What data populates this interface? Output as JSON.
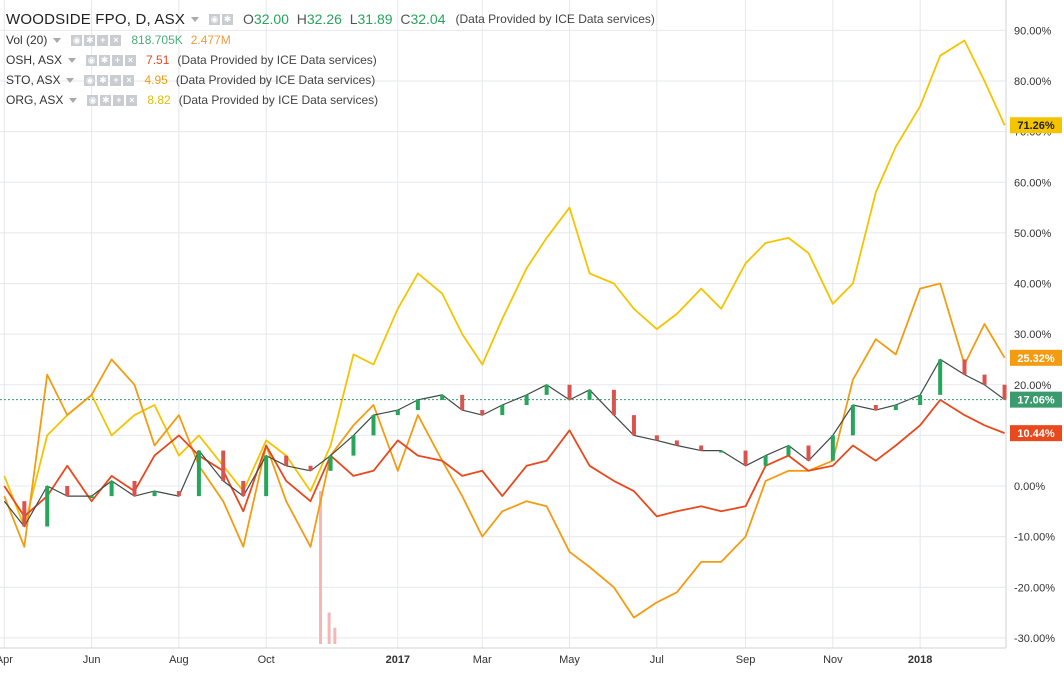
{
  "legend": {
    "main": {
      "symbol": "WOODSIDE FPO, D, ASX",
      "o_label": "O",
      "o": "32.00",
      "h_label": "H",
      "h": "32.26",
      "l_label": "L",
      "l": "31.89",
      "c_label": "C",
      "c": "32.04",
      "provider": "(Data Provided by ICE Data services)"
    },
    "vol": {
      "label": "Vol (20)",
      "v1": "818.705K",
      "v2": "2.477M"
    },
    "compare": [
      {
        "label": "OSH, ASX",
        "value": "7.51",
        "provider": "(Data Provided by ICE Data services)"
      },
      {
        "label": "STO, ASX",
        "value": "4.95",
        "provider": "(Data Provided by ICE Data services)"
      },
      {
        "label": "ORG, ASX",
        "value": "8.82",
        "provider": "(Data Provided by ICE Data services)"
      }
    ]
  },
  "colors": {
    "woodside_up": "#26a65b",
    "woodside_down": "#d9534f",
    "osh": "#e8491d",
    "sto": "#f39c12",
    "org": "#f5c400",
    "grid": "#e6e8ec",
    "axis_text": "#333333"
  },
  "chart_data": {
    "type": "line",
    "ylim": [
      -32,
      96
    ],
    "yticks": [
      -30,
      -20,
      -10,
      0,
      10,
      20,
      30,
      40,
      50,
      60,
      70,
      80,
      90
    ],
    "yticklabels": [
      "-30.00%",
      "-20.00%",
      "-10.00%",
      "0.00%",
      "10.00%",
      "20.00%",
      "30.00%",
      "40.00%",
      "50.00%",
      "60.00%",
      "70.00%",
      "80.00%",
      "90.00%"
    ],
    "xlim": [
      "2016-03-29",
      "2018-03-02"
    ],
    "xticks": [
      "2016-04-01",
      "2016-06-01",
      "2016-08-01",
      "2016-10-01",
      "2017-01-01",
      "2017-03-01",
      "2017-05-01",
      "2017-07-01",
      "2017-09-01",
      "2017-11-01",
      "2018-01-01"
    ],
    "xticklabels": [
      "Apr",
      "Jun",
      "Aug",
      "Oct",
      "2017",
      "Mar",
      "May",
      "Jul",
      "Sep",
      "Nov",
      "2018"
    ],
    "last_labels": [
      {
        "series": "org",
        "text": "71.26%",
        "value": 71.26
      },
      {
        "series": "sto",
        "text": "25.32%",
        "value": 25.32
      },
      {
        "series": "woodside",
        "text": "17.06%",
        "value": 17.06
      },
      {
        "series": "osh",
        "text": "10.44%",
        "value": 10.44
      }
    ],
    "series": [
      {
        "key": "org",
        "x": [
          "2016-04-01",
          "2016-04-15",
          "2016-05-01",
          "2016-05-15",
          "2016-06-01",
          "2016-06-15",
          "2016-07-01",
          "2016-07-15",
          "2016-08-01",
          "2016-08-15",
          "2016-09-01",
          "2016-09-15",
          "2016-10-01",
          "2016-10-15",
          "2016-11-01",
          "2016-11-15",
          "2016-12-01",
          "2016-12-15",
          "2017-01-01",
          "2017-01-15",
          "2017-02-01",
          "2017-02-15",
          "2017-03-01",
          "2017-03-15",
          "2017-04-01",
          "2017-04-15",
          "2017-05-01",
          "2017-05-15",
          "2017-06-01",
          "2017-06-15",
          "2017-07-01",
          "2017-07-15",
          "2017-08-01",
          "2017-08-15",
          "2017-09-01",
          "2017-09-15",
          "2017-10-01",
          "2017-10-15",
          "2017-11-01",
          "2017-11-15",
          "2017-12-01",
          "2017-12-15",
          "2018-01-01",
          "2018-01-15",
          "2018-02-01",
          "2018-02-15",
          "2018-03-01"
        ],
        "y": [
          2,
          -8,
          10,
          14,
          18,
          10,
          14,
          16,
          6,
          10,
          4,
          -1,
          9,
          6,
          -1,
          8,
          26,
          24,
          35,
          42,
          38,
          30,
          24,
          33,
          43,
          49,
          55,
          42,
          40,
          35,
          31,
          34,
          39,
          35,
          44,
          48,
          49,
          46,
          36,
          40,
          58,
          67,
          75,
          85,
          88,
          80,
          71.26
        ]
      },
      {
        "key": "sto",
        "x": [
          "2016-04-01",
          "2016-04-15",
          "2016-05-01",
          "2016-05-15",
          "2016-06-01",
          "2016-06-15",
          "2016-07-01",
          "2016-07-15",
          "2016-08-01",
          "2016-08-15",
          "2016-09-01",
          "2016-09-15",
          "2016-10-01",
          "2016-10-15",
          "2016-11-01",
          "2016-11-15",
          "2016-12-01",
          "2016-12-15",
          "2017-01-01",
          "2017-01-15",
          "2017-02-01",
          "2017-02-15",
          "2017-03-01",
          "2017-03-15",
          "2017-04-01",
          "2017-04-15",
          "2017-05-01",
          "2017-05-15",
          "2017-06-01",
          "2017-06-15",
          "2017-07-01",
          "2017-07-15",
          "2017-08-01",
          "2017-08-15",
          "2017-09-01",
          "2017-09-15",
          "2017-10-01",
          "2017-10-15",
          "2017-11-01",
          "2017-11-15",
          "2017-12-01",
          "2017-12-15",
          "2018-01-01",
          "2018-01-15",
          "2018-02-01",
          "2018-02-15",
          "2018-03-01"
        ],
        "y": [
          -2,
          -12,
          22,
          14,
          18,
          25,
          20,
          8,
          14,
          4,
          -3,
          -12,
          8,
          -3,
          -12,
          6,
          12,
          16,
          3,
          14,
          5,
          -2,
          -10,
          -5,
          -3,
          -4,
          -13,
          -16,
          -20,
          -26,
          -23,
          -21,
          -15,
          -15,
          -10,
          1,
          3,
          3,
          5,
          21,
          29,
          26,
          39,
          40,
          24,
          32,
          25.32
        ]
      },
      {
        "key": "osh",
        "x": [
          "2016-04-01",
          "2016-04-15",
          "2016-05-01",
          "2016-05-15",
          "2016-06-01",
          "2016-06-15",
          "2016-07-01",
          "2016-07-15",
          "2016-08-01",
          "2016-08-15",
          "2016-09-01",
          "2016-09-15",
          "2016-10-01",
          "2016-10-15",
          "2016-11-01",
          "2016-11-15",
          "2016-12-01",
          "2016-12-15",
          "2017-01-01",
          "2017-01-15",
          "2017-02-01",
          "2017-02-15",
          "2017-03-01",
          "2017-03-15",
          "2017-04-01",
          "2017-04-15",
          "2017-05-01",
          "2017-05-15",
          "2017-06-01",
          "2017-06-15",
          "2017-07-01",
          "2017-07-15",
          "2017-08-01",
          "2017-08-15",
          "2017-09-01",
          "2017-09-15",
          "2017-10-01",
          "2017-10-15",
          "2017-11-01",
          "2017-11-15",
          "2017-12-01",
          "2017-12-15",
          "2018-01-01",
          "2018-01-15",
          "2018-02-01",
          "2018-02-15",
          "2018-03-01"
        ],
        "y": [
          0,
          -6,
          -2,
          4,
          -3,
          2,
          -1,
          6,
          10,
          6,
          3,
          -5,
          8,
          1,
          -3,
          6,
          2,
          3,
          9,
          6,
          5,
          2,
          3,
          -2,
          4,
          5,
          11,
          4,
          1,
          -1,
          -6,
          -5,
          -4,
          -5,
          -4,
          4,
          6,
          3,
          4,
          8,
          5,
          8,
          12,
          17,
          14,
          12,
          10.44
        ]
      },
      {
        "key": "woodside",
        "x": [
          "2016-04-01",
          "2016-04-15",
          "2016-05-01",
          "2016-05-15",
          "2016-06-01",
          "2016-06-15",
          "2016-07-01",
          "2016-07-15",
          "2016-08-01",
          "2016-08-15",
          "2016-09-01",
          "2016-09-15",
          "2016-10-01",
          "2016-10-15",
          "2016-11-01",
          "2016-11-15",
          "2016-12-01",
          "2016-12-15",
          "2017-01-01",
          "2017-01-15",
          "2017-02-01",
          "2017-02-15",
          "2017-03-01",
          "2017-03-15",
          "2017-04-01",
          "2017-04-15",
          "2017-05-01",
          "2017-05-15",
          "2017-06-01",
          "2017-06-15",
          "2017-07-01",
          "2017-07-15",
          "2017-08-01",
          "2017-08-15",
          "2017-09-01",
          "2017-09-15",
          "2017-10-01",
          "2017-10-15",
          "2017-11-01",
          "2017-11-15",
          "2017-12-01",
          "2017-12-15",
          "2018-01-01",
          "2018-01-15",
          "2018-02-01",
          "2018-02-15",
          "2018-03-01"
        ],
        "y": [
          -3,
          -8,
          0,
          -2,
          -2,
          1,
          -2,
          -1,
          -2,
          7,
          1,
          -2,
          6,
          4,
          3,
          6,
          10,
          14,
          15,
          17,
          18,
          15,
          14,
          16,
          18,
          20,
          17,
          19,
          14,
          10,
          9,
          8,
          7,
          7,
          4,
          6,
          8,
          5,
          10,
          16,
          15,
          16,
          18,
          25,
          22,
          20,
          17.06
        ]
      }
    ],
    "volume": {
      "x": [
        "2016-11-08",
        "2016-11-14",
        "2016-11-18"
      ],
      "values_pct": [
        -1,
        -25,
        -28
      ]
    }
  }
}
